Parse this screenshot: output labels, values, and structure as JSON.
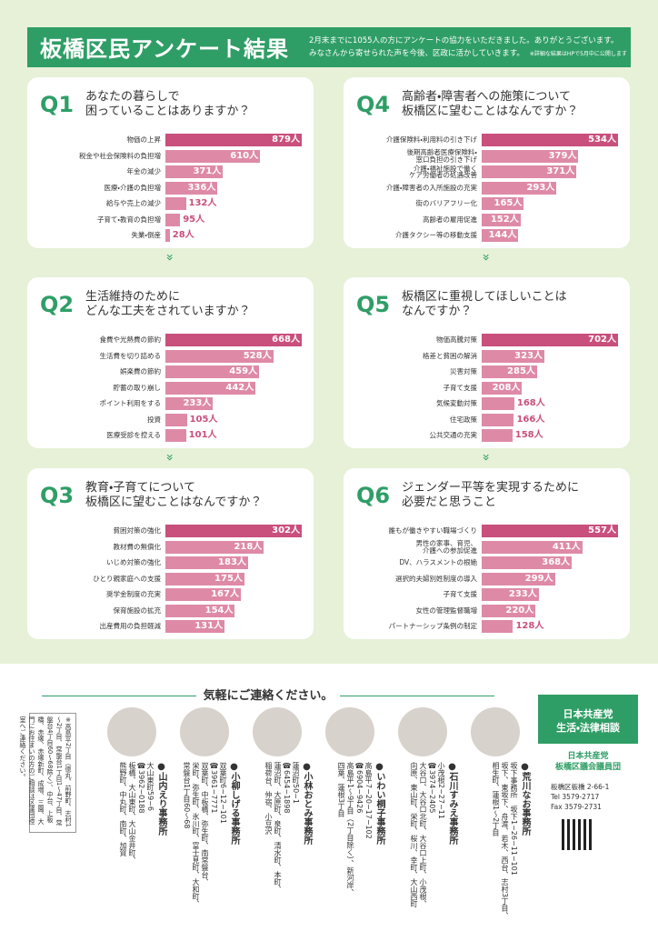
{
  "header": {
    "title": "板橋区民アンケート結果",
    "lines": [
      "2月末までに1055人の方にアンケートの協力をいただきました。ありがとうございます。",
      "みなさんから寄せられた声を今後、区政に活かしていきます。"
    ],
    "note": "※詳細な結果はHPで5月中に公開します"
  },
  "chart_data": [
    {
      "type": "bar",
      "label": "Q1",
      "title": [
        "あなたの暮らしで",
        "困っていることはありますか？"
      ],
      "color": "#de8aa7",
      "highlight_color": "#c94f7d",
      "categories": [
        "物価の上昇",
        "税金や社会保険料の負担増",
        "年金の減少",
        "医療・介護の負担増",
        "給与や売上の減少",
        "子育て・教育の負担増",
        "失業・倒産"
      ],
      "values": [
        879,
        610,
        371,
        336,
        132,
        95,
        28
      ],
      "value_labels": [
        "879人",
        "610人",
        "371人",
        "336人",
        "132人",
        "95人",
        "28人"
      ]
    },
    {
      "type": "bar",
      "label": "Q4",
      "title": [
        "高齢者・障害者への施策について",
        "板橋区に望むことはなんですか？"
      ],
      "color": "#de8aa7",
      "highlight_color": "#c94f7d",
      "categories": [
        "介護保険料・利用料の引き下げ",
        "後期高齢者医療保険料・\n窓口負担の引き下げ",
        "介護・福祉施設で働く\nケア労働者の処遇改善",
        "介護・障害者の入所施設の充実",
        "街のバリアフリー化",
        "高齢者の雇用促進",
        "介護タクシー等の移動支援"
      ],
      "values": [
        534,
        379,
        371,
        293,
        165,
        152,
        144
      ],
      "value_labels": [
        "534人",
        "379人",
        "371人",
        "293人",
        "165人",
        "152人",
        "144人"
      ]
    },
    {
      "type": "bar",
      "label": "Q2",
      "title": [
        "生活維持のために",
        "どんな工夫をされていますか？"
      ],
      "color": "#de8aa7",
      "highlight_color": "#c94f7d",
      "categories": [
        "食費や光熱費の節約",
        "生活費を切り詰める",
        "娯楽費の節約",
        "貯蓄の取り崩し",
        "ポイント利用をする",
        "投資",
        "医療受診を控える"
      ],
      "values": [
        668,
        528,
        459,
        442,
        233,
        105,
        101
      ],
      "value_labels": [
        "668人",
        "528人",
        "459人",
        "442人",
        "233人",
        "105人",
        "101人"
      ]
    },
    {
      "type": "bar",
      "label": "Q5",
      "title": [
        "板橋区に重視してほしいことは",
        "なんですか？"
      ],
      "color": "#de8aa7",
      "highlight_color": "#c94f7d",
      "categories": [
        "物価高騰対策",
        "格差と貧困の解消",
        "災害対策",
        "子育て支援",
        "気候変動対策",
        "住宅政策",
        "公共交通の充実"
      ],
      "values": [
        702,
        323,
        285,
        208,
        168,
        166,
        158
      ],
      "value_labels": [
        "702人",
        "323人",
        "285人",
        "208人",
        "168人",
        "166人",
        "158人"
      ]
    },
    {
      "type": "bar",
      "label": "Q3",
      "title": [
        "教育・子育てについて",
        "板橋区に望むことはなんですか？"
      ],
      "color": "#de8aa7",
      "highlight_color": "#c94f7d",
      "categories": [
        "貧困対策の強化",
        "教材費の無償化",
        "いじめ対策の強化",
        "ひとり親家庭への支援",
        "奨学金制度の充実",
        "保育施設の拡充",
        "出産費用の負担軽減"
      ],
      "values": [
        302,
        218,
        183,
        175,
        167,
        154,
        131
      ],
      "value_labels": [
        "302人",
        "218人",
        "183人",
        "175人",
        "167人",
        "154人",
        "131人"
      ]
    },
    {
      "type": "bar",
      "label": "Q6",
      "title": [
        "ジェンダー平等を実現するために",
        "必要だと思うこと"
      ],
      "color": "#de8aa7",
      "highlight_color": "#c94f7d",
      "categories": [
        "誰もが働きやすい職場づくり",
        "男性の家事、育児、\n介護への参加促進",
        "DV、ハラスメントの根絶",
        "選択的夫婦別姓制度の導入",
        "子育て支援",
        "女性の管理監督職増",
        "パートナーシップ条例の制定"
      ],
      "values": [
        557,
        411,
        368,
        299,
        233,
        220,
        128
      ],
      "value_labels": [
        "557人",
        "411人",
        "368人",
        "299人",
        "233人",
        "220人",
        "128人"
      ]
    }
  ],
  "contact": {
    "heading": "気軽にご連絡ください。",
    "box": {
      "title": [
        "日本共産党",
        "生活・法律相談"
      ],
      "group": [
        "日本共産党",
        "板橋区議会議員団"
      ],
      "address": [
        "板橋区板橋 2-66-1",
        "Tel 3579-2717",
        "Fax 3579-2731"
      ]
    },
    "offices": [
      {
        "name": "●荒川なお事務所",
        "lines": [
          "坂下事務所　坂下1−26−11−101",
          "坂下、東坂下、舟渡、若木、西台、志村3丁目、",
          "相生町、蓮根1～2丁目"
        ]
      },
      {
        "name": "●石川すみえ事務所",
        "lines": [
          "小茂根2−27−11",
          "☎3974−2405",
          "大谷口、大谷口北町、大谷口上町、小茂根、",
          "向原、東山町、栄町、桜川、幸町、大山西町"
        ]
      },
      {
        "name": "●いわい桐子事務所",
        "lines": [
          "高島平7−20−17−102",
          "☎6904−9426",
          "高島平1～9丁目（2丁目除く）、新河岸、",
          "四葉、蓮根3丁目"
        ]
      },
      {
        "name": "●小林おとみ事務所",
        "lines": [
          "蓮沼町50−1",
          "☎6454−1898",
          "蓮沼町、大原町、泉町、清水町、本町、",
          "稲荷台、仲宿、小豆沢"
        ]
      },
      {
        "name": "●小柳しげる事務所",
        "lines": [
          "双葉町6−12−101",
          "☎3961−7771",
          "双葉町、中板橋、弥生町、南常盤台、",
          "栄町、弥生町、氷川町、富士見町、大和町、",
          "常盤台1丁目60～68"
        ]
      },
      {
        "name": "●山内えり事務所",
        "lines": [
          "大山東町59−6",
          "☎3962−0188",
          "板橋、大山東町、大山金井町、",
          "熊野町、中丸町、南町、加賀"
        ]
      }
    ],
    "note": "※高島平2丁目（徳丸、前野町、志村1～2丁目、常盤台1丁目1～47丁目、常盤台4丁目60～68除く）、中台、上板橋、赤塚、赤塚新町、成増、三園、大門にお住まいの方のご相談は区議団控室へご連絡ください。"
  }
}
